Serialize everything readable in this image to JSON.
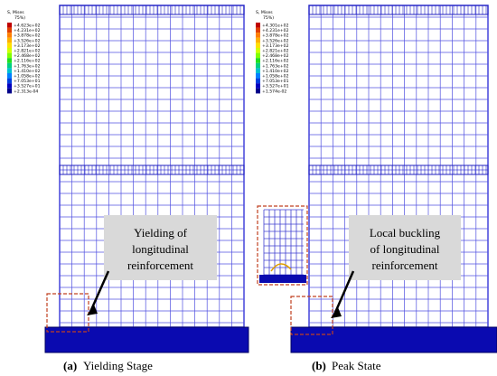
{
  "panels": [
    {
      "legend": {
        "title": "S, Mises",
        "subtitle": "75%)",
        "values": [
          "+4.623e+02",
          "+4.231e+02",
          "+3.878e+02",
          "+3.526e+02",
          "+3.173e+02",
          "+2.821e+02",
          "+2.468e+02",
          "+2.116e+02",
          "+1.763e+02",
          "+1.410e+02",
          "+1.058e+02",
          "+7.053e+01",
          "+3.527e+01",
          "+2.313e-04"
        ]
      },
      "callout": "Yielding of longitudinal reinforcement",
      "caption_label": "(a)",
      "caption": "Yielding Stage"
    },
    {
      "legend": {
        "title": "S, Mises",
        "subtitle": "75%)",
        "values": [
          "+4.301e+02",
          "+4.231e+02",
          "+3.878e+02",
          "+3.526e+02",
          "+3.173e+02",
          "+2.821e+02",
          "+2.468e+02",
          "+2.116e+02",
          "+1.763e+02",
          "+1.410e+02",
          "+1.058e+02",
          "+7.053e+01",
          "+3.527e+01",
          "+1.574e-02"
        ]
      },
      "callout": "Local buckling of longitudinal reinforcement",
      "caption_label": "(b)",
      "caption": "Peak State"
    }
  ]
}
